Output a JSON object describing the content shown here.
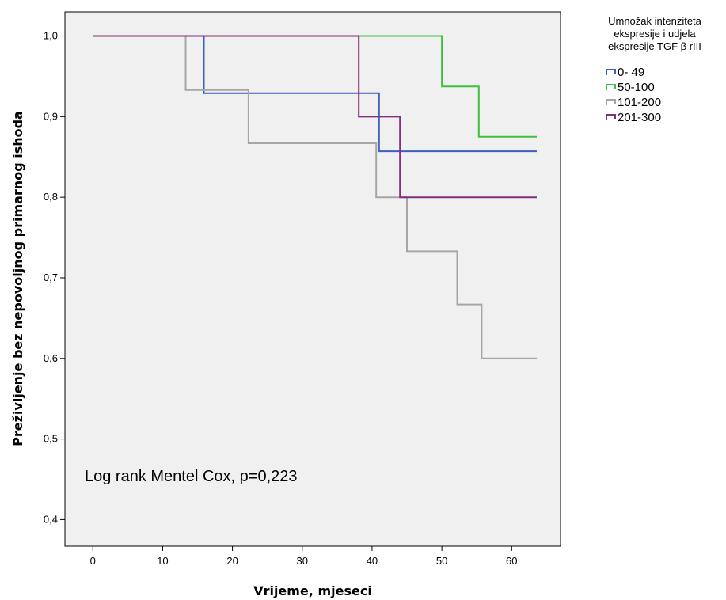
{
  "chart_data": {
    "type": "line",
    "step": true,
    "xlabel": "Vrijeme, mjeseci",
    "ylabel": "Preživljenje bez nepovoljnog primarnog ishoda",
    "xlim": [
      -4,
      67
    ],
    "ylim": [
      0.367,
      1.03
    ],
    "xticks": [
      0,
      10,
      20,
      30,
      40,
      50,
      60
    ],
    "yticks": [
      0.4,
      0.5,
      0.6,
      0.7,
      0.8,
      0.9,
      1.0
    ],
    "xtick_labels": [
      "0",
      "10",
      "20",
      "30",
      "40",
      "50",
      "60"
    ],
    "ytick_labels": [
      "0,4",
      "0,5",
      "0,6",
      "0,7",
      "0,8",
      "0,9",
      "1,0"
    ],
    "grid": false,
    "background": "#f0f0f0",
    "annotation": "Log rank Mentel Cox, p=0,223",
    "legend": {
      "position": "top-right outside",
      "title_lines": [
        "Umnožak intenziteta",
        "ekspresije i udjela",
        "ekspresije TGF β rIII"
      ]
    },
    "series": [
      {
        "name": "0- 49",
        "color": "#3f5fbf",
        "x": [
          0,
          15.9,
          41,
          63.6
        ],
        "y": [
          1.0,
          0.929,
          0.857,
          0.857
        ]
      },
      {
        "name": "50-100",
        "color": "#40bf40",
        "x": [
          0,
          50,
          55.3,
          63.6
        ],
        "y": [
          1.0,
          0.9375,
          0.875,
          0.875
        ]
      },
      {
        "name": "101-200",
        "color": "#a6a6a6",
        "x": [
          0,
          13.3,
          22.3,
          40.6,
          45,
          52.2,
          55.7,
          63.6
        ],
        "y": [
          1.0,
          0.933,
          0.867,
          0.8,
          0.733,
          0.667,
          0.6,
          0.6
        ]
      },
      {
        "name": "201-300",
        "color": "#7f307f",
        "x": [
          0,
          38.1,
          44,
          63.6
        ],
        "y": [
          1.0,
          0.9,
          0.8,
          0.8
        ]
      }
    ]
  }
}
